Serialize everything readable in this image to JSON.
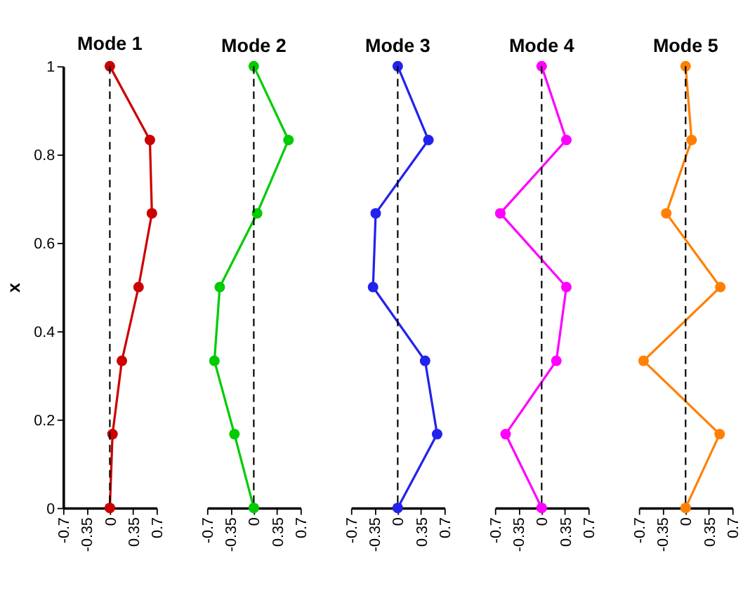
{
  "chart_data": [
    {
      "type": "line",
      "title": "Mode 1",
      "ylabel": "x",
      "marker": "circle",
      "xlim": [
        -0.7,
        0.7
      ],
      "xticks": [
        -0.7,
        -0.35,
        0,
        0.35,
        0.7
      ],
      "ylim": [
        0,
        1
      ],
      "yticks": [
        0,
        0.2,
        0.4,
        0.6,
        0.8,
        1
      ],
      "ref_lines": [
        {
          "axis": "x",
          "value": 0,
          "line_style": "dashed",
          "color": "#000000"
        }
      ],
      "series": [
        {
          "color": "#cc0000",
          "x": [
            0,
            0.04,
            0.18,
            0.43,
            0.63,
            0.6,
            0
          ],
          "values": [
            0,
            0.167,
            0.333,
            0.5,
            0.667,
            0.833,
            1
          ]
        }
      ]
    },
    {
      "type": "line",
      "title": "Mode 2",
      "marker": "circle",
      "tick_labels": "x",
      "xlim": [
        -0.7,
        0.7
      ],
      "xticks": [
        -0.7,
        -0.35,
        0,
        0.35,
        0.7
      ],
      "ylim": [
        0,
        1
      ],
      "ref_lines": [
        {
          "axis": "x",
          "value": 0,
          "line_style": "dashed",
          "color": "#000000"
        }
      ],
      "series": [
        {
          "color": "#00cc00",
          "x": [
            0,
            -0.29,
            -0.59,
            -0.51,
            0.05,
            0.52,
            0
          ],
          "values": [
            0,
            0.167,
            0.333,
            0.5,
            0.667,
            0.833,
            1
          ]
        }
      ]
    },
    {
      "type": "line",
      "title": "Mode 3",
      "marker": "circle",
      "tick_labels": "x",
      "xlim": [
        -0.7,
        0.7
      ],
      "xticks": [
        -0.7,
        -0.35,
        0,
        0.35,
        0.7
      ],
      "ylim": [
        0,
        1
      ],
      "ref_lines": [
        {
          "axis": "x",
          "value": 0,
          "line_style": "dashed",
          "color": "#000000"
        }
      ],
      "series": [
        {
          "color": "#2222ee",
          "x": [
            0,
            0.59,
            0.41,
            -0.37,
            -0.33,
            0.46,
            0
          ],
          "values": [
            0,
            0.167,
            0.333,
            0.5,
            0.667,
            0.833,
            1
          ]
        }
      ]
    },
    {
      "type": "line",
      "title": "Mode 4",
      "marker": "circle",
      "tick_labels": "x",
      "xlim": [
        -0.7,
        0.7
      ],
      "xticks": [
        -0.7,
        -0.35,
        0,
        0.35,
        0.7
      ],
      "ylim": [
        0,
        1
      ],
      "ref_lines": [
        {
          "axis": "x",
          "value": 0,
          "line_style": "dashed",
          "color": "#000000"
        }
      ],
      "series": [
        {
          "color": "#ff00ff",
          "x": [
            0,
            -0.54,
            0.22,
            0.37,
            -0.62,
            0.37,
            0
          ],
          "values": [
            0,
            0.167,
            0.333,
            0.5,
            0.667,
            0.833,
            1
          ]
        }
      ]
    },
    {
      "type": "line",
      "title": "Mode 5",
      "marker": "circle",
      "tick_labels": "x",
      "xlim": [
        -0.7,
        0.7
      ],
      "xticks": [
        -0.7,
        -0.35,
        0,
        0.35,
        0.7
      ],
      "ylim": [
        0,
        1
      ],
      "ref_lines": [
        {
          "axis": "x",
          "value": 0,
          "line_style": "dashed",
          "color": "#000000"
        }
      ],
      "series": [
        {
          "color": "#ff8000",
          "x": [
            0,
            0.51,
            -0.63,
            0.52,
            -0.29,
            0.09,
            0
          ],
          "values": [
            0,
            0.167,
            0.333,
            0.5,
            0.667,
            0.833,
            1
          ]
        }
      ]
    }
  ]
}
